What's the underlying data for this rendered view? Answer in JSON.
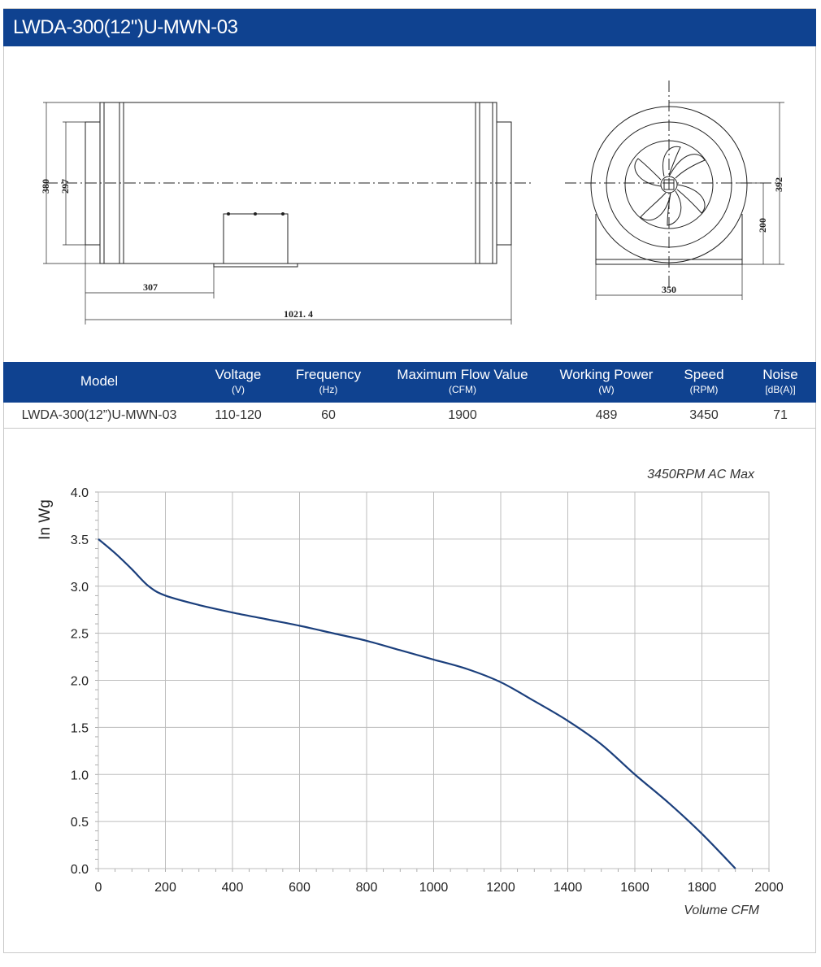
{
  "title": "LWDA-300(12'')U-MWN-03",
  "drawing": {
    "side_view": {
      "height_outer": "380",
      "height_inner": "297",
      "mount_offset": "307",
      "total_length": "1021. 4"
    },
    "front_view": {
      "height_total": "392",
      "center_height": "200",
      "base_width": "350"
    }
  },
  "specs": {
    "headers": [
      {
        "name": "Model",
        "unit": ""
      },
      {
        "name": "Voltage",
        "unit": "(V)"
      },
      {
        "name": "Frequency",
        "unit": "(Hz)"
      },
      {
        "name": "Maximum Flow Value",
        "unit": "(CFM)"
      },
      {
        "name": "Working Power",
        "unit": "(W)"
      },
      {
        "name": "Speed",
        "unit": "(RPM)"
      },
      {
        "name": "Noise",
        "unit": "[dB(A)]"
      }
    ],
    "row": [
      "LWDA-300(12”)U-MWN-03",
      "110-120",
      "60",
      "1900",
      "489",
      "3450",
      "71"
    ]
  },
  "chart_data": {
    "type": "line",
    "title": "3450RPM AC Max",
    "xlabel": "Volume CFM",
    "ylabel": "In Wg",
    "xlim": [
      0,
      2000
    ],
    "ylim": [
      0,
      4.0
    ],
    "x_ticks": [
      "0",
      "200",
      "400",
      "600",
      "800",
      "1000",
      "1200",
      "1400",
      "1600",
      "1800",
      "2000"
    ],
    "y_ticks": [
      "0.0",
      "0.5",
      "1.0",
      "1.5",
      "2.0",
      "2.5",
      "3.0",
      "3.5",
      "4.0"
    ],
    "grid": true,
    "series": [
      {
        "color": "#1b3f7c",
        "x": [
          0,
          50,
          100,
          150,
          200,
          300,
          400,
          500,
          600,
          700,
          800,
          900,
          1000,
          1100,
          1200,
          1300,
          1400,
          1500,
          1600,
          1700,
          1800,
          1900
        ],
        "y": [
          3.5,
          3.35,
          3.18,
          3.0,
          2.9,
          2.8,
          2.72,
          2.65,
          2.58,
          2.5,
          2.42,
          2.32,
          2.22,
          2.12,
          1.98,
          1.78,
          1.57,
          1.32,
          1.0,
          0.7,
          0.37,
          0.0
        ]
      }
    ]
  }
}
